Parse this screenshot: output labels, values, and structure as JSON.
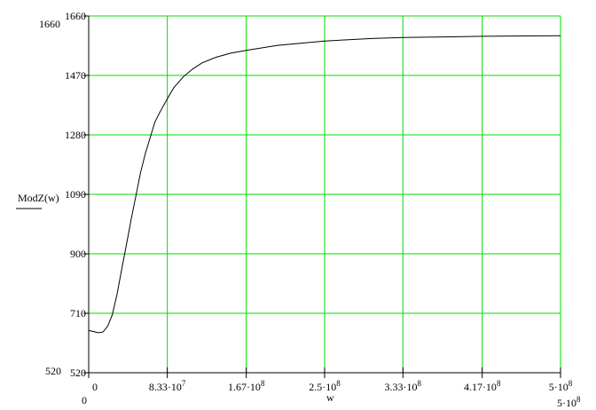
{
  "chart_data": {
    "type": "line",
    "ylabel": "ModZ(w)",
    "xlabel": "w",
    "xlim": [
      0,
      500000000
    ],
    "ylim": [
      520,
      1660
    ],
    "x_ticks": [
      0,
      83300000,
      167000000,
      250000000,
      333000000,
      417000000,
      500000000
    ],
    "x_tick_labels": [
      "0",
      "8.33·10^7",
      "1.67·10^8",
      "2.5·10^8",
      "3.33·10^8",
      "4.17·10^8",
      "5·10^8"
    ],
    "y_ticks": [
      520,
      710,
      900,
      1090,
      1280,
      1470,
      1660
    ],
    "y_tick_labels": [
      "520",
      "710",
      "900",
      "1090",
      "1280",
      "1470",
      "1660"
    ],
    "y_axis_max_label": "1660",
    "y_axis_min_label": "520",
    "x_axis_min_label": "0",
    "x_axis_max_label": "5·10^8",
    "grid": true,
    "grid_color": "#00dd00",
    "line_color": "#000000",
    "series": [
      {
        "x": [
          0,
          5000000,
          10000000,
          15000000,
          20000000,
          25000000,
          30000000,
          35000000,
          40000000,
          45000000,
          50000000,
          55000000,
          60000000,
          65000000,
          70000000,
          75000000,
          83300000,
          90000000,
          100000000,
          110000000,
          120000000,
          135000000,
          150000000,
          167000000,
          200000000,
          250000000,
          300000000,
          333000000,
          417000000,
          500000000
        ],
        "y": [
          655,
          652,
          648,
          650,
          668,
          705,
          770,
          850,
          930,
          1010,
          1085,
          1160,
          1220,
          1270,
          1320,
          1350,
          1395,
          1430,
          1465,
          1490,
          1510,
          1528,
          1541,
          1550,
          1566,
          1580,
          1588,
          1591,
          1595,
          1597
        ]
      }
    ]
  }
}
